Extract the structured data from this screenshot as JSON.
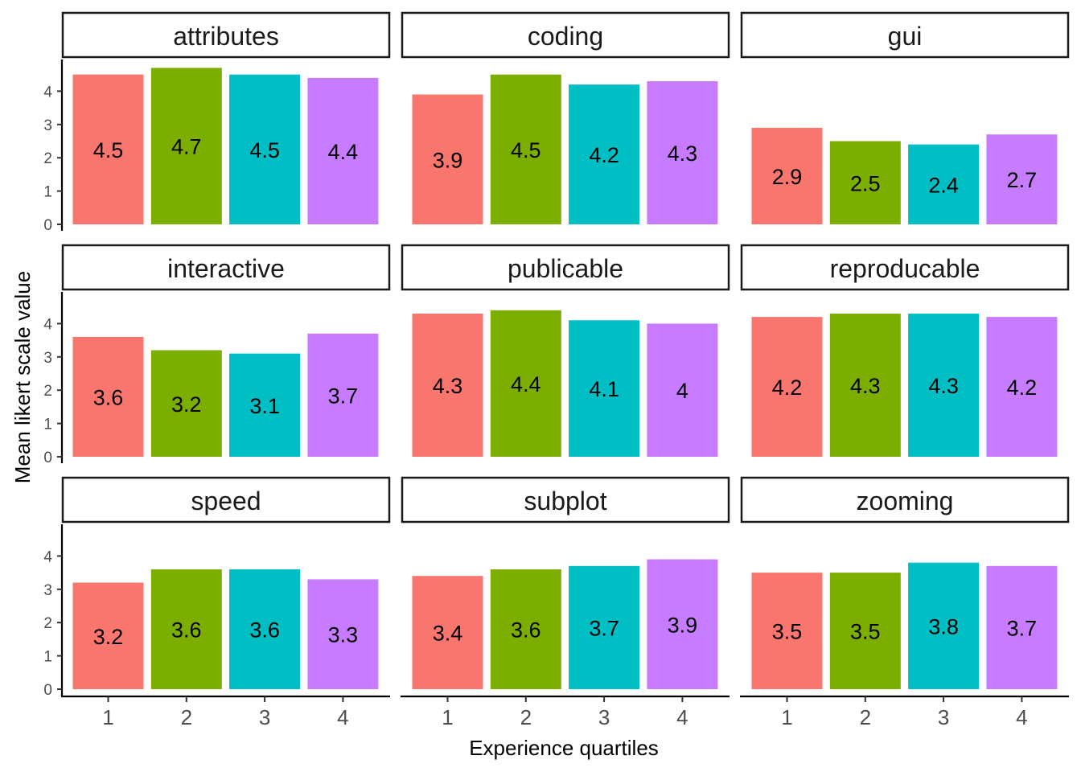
{
  "chart_data": {
    "type": "bar",
    "xlabel": "Experience quartiles",
    "ylabel": "Mean likert scale value",
    "categories": [
      "1",
      "2",
      "3",
      "4"
    ],
    "ylim": [
      0,
      4.75
    ],
    "y_ticks": [
      "0",
      "1",
      "2",
      "3",
      "4"
    ],
    "grid": false,
    "legend": "none",
    "bar_colors": [
      "#F8766D",
      "#7CAE00",
      "#00BFC4",
      "#C77CFF"
    ],
    "panels": [
      {
        "name": "attributes",
        "values": [
          4.5,
          4.7,
          4.5,
          4.4
        ],
        "labels": [
          "4.5",
          "4.7",
          "4.5",
          "4.4"
        ]
      },
      {
        "name": "coding",
        "values": [
          3.9,
          4.5,
          4.2,
          4.3
        ],
        "labels": [
          "3.9",
          "4.5",
          "4.2",
          "4.3"
        ]
      },
      {
        "name": "gui",
        "values": [
          2.9,
          2.5,
          2.4,
          2.7
        ],
        "labels": [
          "2.9",
          "2.5",
          "2.4",
          "2.7"
        ]
      },
      {
        "name": "interactive",
        "values": [
          3.6,
          3.2,
          3.1,
          3.7
        ],
        "labels": [
          "3.6",
          "3.2",
          "3.1",
          "3.7"
        ]
      },
      {
        "name": "publicable",
        "values": [
          4.3,
          4.4,
          4.1,
          4.0
        ],
        "labels": [
          "4.3",
          "4.4",
          "4.1",
          "4"
        ]
      },
      {
        "name": "reproducable",
        "values": [
          4.2,
          4.3,
          4.3,
          4.2
        ],
        "labels": [
          "4.2",
          "4.3",
          "4.3",
          "4.2"
        ]
      },
      {
        "name": "speed",
        "values": [
          3.2,
          3.6,
          3.6,
          3.3
        ],
        "labels": [
          "3.2",
          "3.6",
          "3.6",
          "3.3"
        ]
      },
      {
        "name": "subplot",
        "values": [
          3.4,
          3.6,
          3.7,
          3.9
        ],
        "labels": [
          "3.4",
          "3.6",
          "3.7",
          "3.9"
        ]
      },
      {
        "name": "zooming",
        "values": [
          3.5,
          3.5,
          3.8,
          3.7
        ],
        "labels": [
          "3.5",
          "3.5",
          "3.8",
          "3.7"
        ]
      }
    ]
  }
}
